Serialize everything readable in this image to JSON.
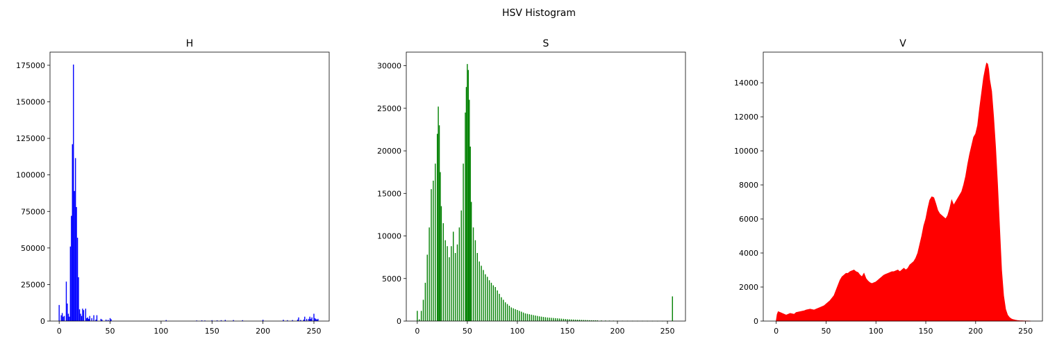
{
  "figure": {
    "suptitle": "HSV Histogram"
  },
  "chart_data": [
    {
      "type": "bar",
      "title": "H",
      "xlabel": "",
      "ylabel": "",
      "color": "#0000ff",
      "xlim": [
        -9,
        265
      ],
      "ylim": [
        0,
        184000
      ],
      "xticks": [
        0,
        50,
        100,
        150,
        200,
        250
      ],
      "yticks": [
        0,
        25000,
        50000,
        75000,
        100000,
        125000,
        150000,
        175000
      ],
      "x": [
        0,
        2,
        3,
        4,
        5,
        7,
        8,
        9,
        10,
        11,
        12,
        13,
        14,
        15,
        16,
        17,
        18,
        19,
        20,
        21,
        22,
        23,
        24,
        26,
        27,
        28,
        29,
        30,
        32,
        34,
        36,
        37,
        41,
        42,
        46,
        48,
        50,
        51,
        105,
        135,
        140,
        143,
        150,
        155,
        159,
        163,
        171,
        180,
        200,
        220,
        224,
        229,
        234,
        235,
        237,
        240,
        241,
        243,
        245,
        246,
        247,
        248,
        250,
        251,
        252,
        253,
        254
      ],
      "values": [
        11000,
        4000,
        5500,
        3000,
        3500,
        27000,
        12000,
        5000,
        3000,
        51000,
        72000,
        121000,
        175500,
        89000,
        111500,
        78000,
        57000,
        30000,
        8000,
        5000,
        3500,
        8500,
        7500,
        8500,
        2000,
        2500,
        1500,
        3500,
        2000,
        4000,
        1000,
        4000,
        1500,
        1000,
        1000,
        800,
        2000,
        1200,
        700,
        400,
        500,
        400,
        600,
        500,
        600,
        800,
        700,
        600,
        900,
        900,
        600,
        700,
        1000,
        2500,
        800,
        1000,
        3000,
        1500,
        1500,
        3000,
        1500,
        2500,
        5000,
        2000,
        1500,
        1000,
        1500
      ]
    },
    {
      "type": "bar",
      "title": "S",
      "xlabel": "",
      "ylabel": "",
      "color": "#008000",
      "xlim": [
        -11,
        268
      ],
      "ylim": [
        0,
        31600
      ],
      "xticks": [
        0,
        50,
        100,
        150,
        200,
        250
      ],
      "yticks": [
        0,
        5000,
        10000,
        15000,
        20000,
        25000,
        30000
      ],
      "x": [
        0,
        2,
        4,
        6,
        8,
        10,
        12,
        14,
        16,
        18,
        20,
        21,
        22,
        23,
        24,
        26,
        28,
        30,
        32,
        34,
        36,
        38,
        40,
        42,
        44,
        46,
        48,
        49,
        50,
        51,
        52,
        53,
        54,
        56,
        58,
        60,
        62,
        64,
        66,
        68,
        70,
        72,
        74,
        76,
        78,
        80,
        82,
        84,
        86,
        88,
        90,
        92,
        94,
        96,
        98,
        100,
        102,
        104,
        106,
        108,
        110,
        112,
        114,
        116,
        118,
        120,
        122,
        124,
        126,
        128,
        130,
        132,
        134,
        136,
        138,
        140,
        142,
        144,
        146,
        148,
        150,
        152,
        154,
        156,
        158,
        160,
        162,
        164,
        166,
        168,
        170,
        172,
        174,
        176,
        178,
        180,
        184,
        188,
        192,
        196,
        200,
        205,
        210,
        215,
        220,
        225,
        230,
        235,
        240,
        245,
        250,
        255
      ],
      "values": [
        1200,
        200,
        1200,
        2500,
        4500,
        7800,
        11000,
        15500,
        16500,
        18500,
        22000,
        25200,
        23000,
        17500,
        13500,
        11500,
        9500,
        8800,
        7500,
        8800,
        10500,
        8000,
        9000,
        11000,
        13000,
        18500,
        24500,
        27500,
        30200,
        29500,
        26000,
        20500,
        14000,
        11000,
        9500,
        8000,
        7000,
        6500,
        6000,
        5500,
        5200,
        4800,
        4500,
        4200,
        4000,
        3600,
        3200,
        2800,
        2500,
        2200,
        2000,
        1800,
        1600,
        1500,
        1400,
        1300,
        1200,
        1100,
        1000,
        900,
        850,
        800,
        750,
        700,
        650,
        600,
        550,
        520,
        480,
        450,
        420,
        400,
        380,
        360,
        340,
        320,
        300,
        280,
        260,
        240,
        220,
        200,
        190,
        180,
        170,
        160,
        150,
        140,
        130,
        120,
        110,
        100,
        95,
        90,
        85,
        80,
        70,
        60,
        55,
        50,
        45,
        40,
        35,
        30,
        28,
        25,
        22,
        20,
        18,
        15,
        12,
        2900
      ]
    },
    {
      "type": "area",
      "title": "V",
      "xlabel": "",
      "ylabel": "",
      "color": "#ff0000",
      "xlim": [
        -13,
        267
      ],
      "ylim": [
        0,
        15800
      ],
      "xticks": [
        0,
        50,
        100,
        150,
        200,
        250
      ],
      "yticks": [
        0,
        2000,
        4000,
        6000,
        8000,
        10000,
        12000,
        14000
      ],
      "x": [
        0,
        1,
        2,
        4,
        8,
        10,
        14,
        18,
        20,
        24,
        28,
        30,
        34,
        38,
        40,
        44,
        48,
        50,
        54,
        58,
        60,
        62,
        64,
        66,
        68,
        70,
        72,
        74,
        76,
        78,
        80,
        82,
        84,
        86,
        88,
        90,
        92,
        94,
        96,
        98,
        100,
        102,
        104,
        106,
        108,
        110,
        112,
        114,
        116,
        118,
        120,
        122,
        124,
        126,
        128,
        130,
        132,
        134,
        136,
        138,
        140,
        142,
        144,
        146,
        148,
        150,
        152,
        154,
        156,
        158,
        160,
        162,
        164,
        166,
        168,
        170,
        172,
        174,
        176,
        178,
        180,
        182,
        184,
        186,
        188,
        190,
        192,
        194,
        196,
        198,
        200,
        202,
        204,
        206,
        208,
        210,
        211,
        212,
        213,
        214,
        216,
        218,
        220,
        222,
        224,
        226,
        228,
        230,
        232,
        234,
        236,
        238,
        240,
        242,
        244,
        246,
        248,
        250,
        252,
        255
      ],
      "values": [
        0,
        400,
        550,
        500,
        400,
        350,
        450,
        400,
        500,
        550,
        600,
        650,
        700,
        650,
        700,
        800,
        900,
        1000,
        1200,
        1500,
        1800,
        2100,
        2400,
        2600,
        2700,
        2800,
        2800,
        2900,
        2950,
        3000,
        2900,
        2850,
        2700,
        2600,
        2800,
        2500,
        2350,
        2250,
        2200,
        2250,
        2300,
        2400,
        2500,
        2600,
        2700,
        2750,
        2800,
        2850,
        2900,
        2900,
        2950,
        3000,
        2900,
        3000,
        3100,
        3000,
        3100,
        3300,
        3400,
        3500,
        3700,
        4000,
        4500,
        5000,
        5600,
        6000,
        6600,
        7100,
        7300,
        7250,
        6900,
        6500,
        6300,
        6200,
        6100,
        6000,
        6200,
        6600,
        7100,
        6800,
        7000,
        7200,
        7400,
        7600,
        8000,
        8500,
        9200,
        9800,
        10300,
        10800,
        11000,
        11500,
        12500,
        13400,
        14300,
        14900,
        15150,
        15100,
        14800,
        14200,
        13500,
        12000,
        10200,
        8000,
        5500,
        3000,
        1500,
        700,
        350,
        200,
        120,
        80,
        50,
        30,
        20,
        15,
        10,
        5,
        3,
        0
      ]
    }
  ]
}
